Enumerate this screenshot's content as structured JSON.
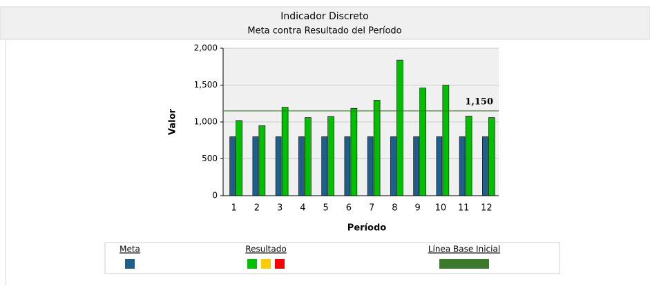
{
  "chart_data": {
    "type": "bar",
    "title": "Indicador Discreto",
    "subtitle": "Meta contra Resultado del Período",
    "x_label": "Período",
    "y_label": "Valor",
    "categories": [
      "1",
      "2",
      "3",
      "4",
      "5",
      "6",
      "7",
      "8",
      "9",
      "10",
      "11",
      "12"
    ],
    "series": [
      {
        "name": "Meta",
        "color": "#1f5f8b",
        "values": [
          800,
          800,
          800,
          800,
          800,
          800,
          800,
          800,
          800,
          800,
          800,
          800
        ]
      },
      {
        "name": "Resultado",
        "color": "#00c000",
        "legend_colors": [
          "#00c000",
          "#ffcc00",
          "#ff0000"
        ],
        "values": [
          1020,
          950,
          1200,
          1060,
          1075,
          1185,
          1295,
          1840,
          1460,
          1500,
          1080,
          1060
        ]
      }
    ],
    "baseline": {
      "name": "Línea Base Inicial",
      "value": 1150,
      "label": "1,150",
      "color": "#3a7a2a"
    },
    "ylim": [
      0,
      2000
    ],
    "yticks": [
      0,
      500,
      {
        "value": 1000,
        "label": "1,000"
      },
      {
        "value": 1500,
        "label": "1,500"
      },
      {
        "value": 2000,
        "label": "2,000"
      }
    ]
  }
}
